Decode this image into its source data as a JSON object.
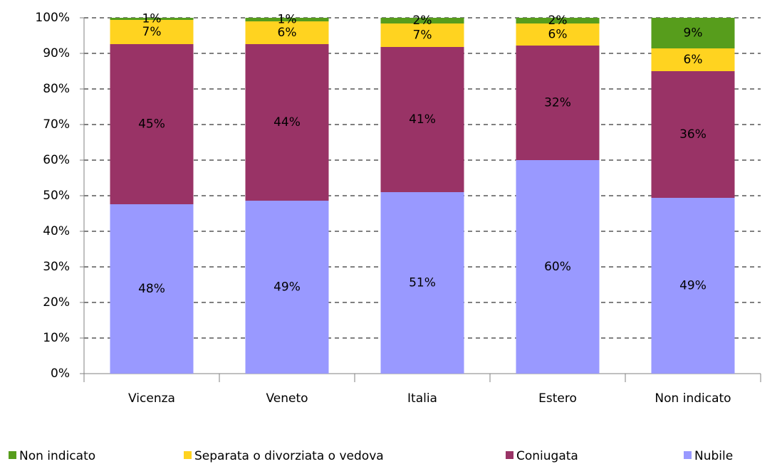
{
  "chart_data": {
    "type": "stacked_bar",
    "categories": [
      "Vicenza",
      "Veneto",
      "Italia",
      "Estero",
      "Non indicato"
    ],
    "series": [
      {
        "name": "Nubile",
        "color": "#9999ff",
        "values": [
          47.6,
          48.6,
          51.0,
          60.0,
          49.4
        ],
        "value_labels": [
          "48%",
          "49%",
          "51%",
          "60%",
          "49%"
        ]
      },
      {
        "name": "Coniugata",
        "color": "#993366",
        "values": [
          45.0,
          44.0,
          40.8,
          32.2,
          35.6
        ],
        "value_labels": [
          "45%",
          "44%",
          "41%",
          "32%",
          "36%"
        ]
      },
      {
        "name": "Separata o divorziata o vedova",
        "color": "#ffd320",
        "values": [
          6.8,
          6.4,
          6.6,
          6.2,
          6.4
        ],
        "value_labels": [
          "7%",
          "6%",
          "7%",
          "6%",
          "6%"
        ]
      },
      {
        "name": "Non indicato",
        "color": "#579d1c",
        "values": [
          0.6,
          1.0,
          1.6,
          1.6,
          8.6
        ],
        "value_labels": [
          "1%",
          "1%",
          "2%",
          "2%",
          "9%"
        ]
      }
    ],
    "ylim": [
      0,
      100
    ],
    "yticks": [
      {
        "value": 0,
        "label": "0%"
      },
      {
        "value": 10,
        "label": "10%"
      },
      {
        "value": 20,
        "label": "20%"
      },
      {
        "value": 30,
        "label": "30%"
      },
      {
        "value": 40,
        "label": "40%"
      },
      {
        "value": 50,
        "label": "50%"
      },
      {
        "value": 60,
        "label": "60%"
      },
      {
        "value": 70,
        "label": "70%"
      },
      {
        "value": 80,
        "label": "80%"
      },
      {
        "value": 90,
        "label": "90%"
      },
      {
        "value": 100,
        "label": "100%"
      }
    ],
    "grid": true
  }
}
